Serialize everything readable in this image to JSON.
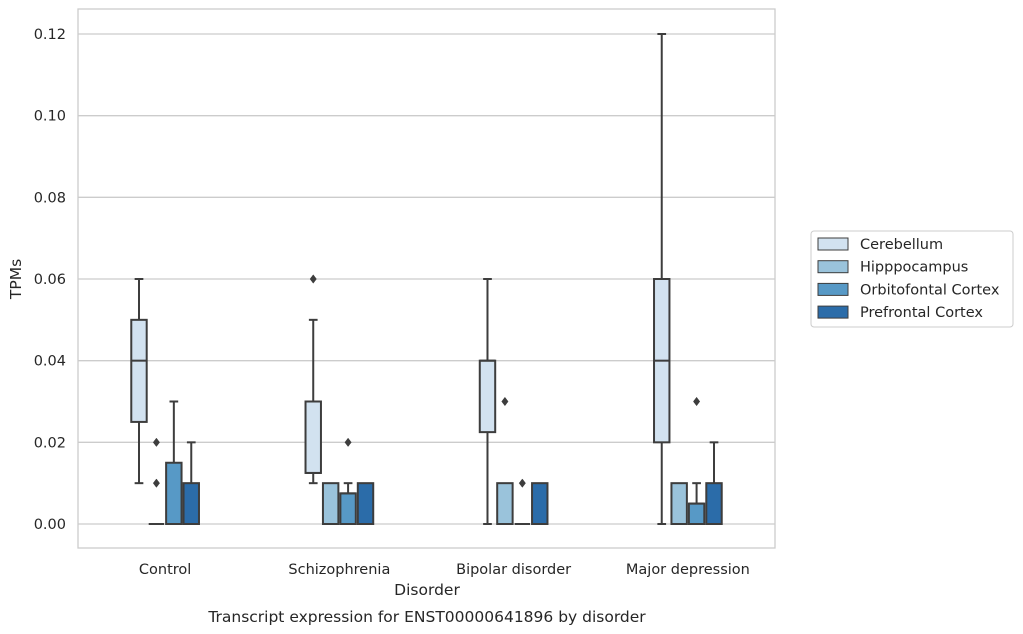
{
  "chart_data": {
    "type": "box",
    "title": "Transcript expression for ENST00000641896 by disorder",
    "xlabel": "Disorder",
    "ylabel": "TPMs",
    "ylim": [
      -0.006,
      0.126
    ],
    "yticks": [
      0.0,
      0.02,
      0.04,
      0.06,
      0.08,
      0.1,
      0.12
    ],
    "ytick_labels": [
      "0.00",
      "0.02",
      "0.04",
      "0.06",
      "0.08",
      "0.10",
      "0.12"
    ],
    "categories": [
      "Control",
      "Schizophrenia",
      "Bipolar disorder",
      "Major depression"
    ],
    "grid": "horizontal",
    "legend_position": "right",
    "series": [
      {
        "name": "Cerebellum",
        "color": "#d2e2f0",
        "boxes": [
          {
            "q1": 0.025,
            "median": 0.04,
            "q3": 0.05,
            "whisker_low": 0.01,
            "whisker_high": 0.06,
            "outliers": []
          },
          {
            "q1": 0.0125,
            "median": 0.0125,
            "q3": 0.03,
            "whisker_low": 0.01,
            "whisker_high": 0.05,
            "outliers": [
              0.06
            ]
          },
          {
            "q1": 0.0225,
            "median": 0.04,
            "q3": 0.04,
            "whisker_low": 0.0,
            "whisker_high": 0.06,
            "outliers": []
          },
          {
            "q1": 0.02,
            "median": 0.04,
            "q3": 0.06,
            "whisker_low": 0.0,
            "whisker_high": 0.12,
            "outliers": []
          }
        ]
      },
      {
        "name": "Hipppocampus",
        "color": "#9ac3db",
        "boxes": [
          {
            "q1": 0.0,
            "median": 0.0,
            "q3": 0.0,
            "whisker_low": 0.0,
            "whisker_high": 0.0,
            "outliers": [
              0.01,
              0.02
            ]
          },
          {
            "q1": 0.0,
            "median": 0.0,
            "q3": 0.01,
            "whisker_low": 0.0,
            "whisker_high": 0.01,
            "outliers": []
          },
          {
            "q1": 0.0,
            "median": 0.0,
            "q3": 0.01,
            "whisker_low": 0.0,
            "whisker_high": 0.01,
            "outliers": [
              0.03
            ]
          },
          {
            "q1": 0.0,
            "median": 0.0,
            "q3": 0.01,
            "whisker_low": 0.0,
            "whisker_high": 0.01,
            "outliers": []
          }
        ]
      },
      {
        "name": "Orbitofontal Cortex",
        "color": "#5799c6",
        "boxes": [
          {
            "q1": 0.0,
            "median": 0.0,
            "q3": 0.015,
            "whisker_low": 0.0,
            "whisker_high": 0.03,
            "outliers": []
          },
          {
            "q1": 0.0,
            "median": 0.0075,
            "q3": 0.0075,
            "whisker_low": 0.0,
            "whisker_high": 0.01,
            "outliers": [
              0.02
            ]
          },
          {
            "q1": 0.0,
            "median": 0.0,
            "q3": 0.0,
            "whisker_low": 0.0,
            "whisker_high": 0.0,
            "outliers": [
              0.01
            ]
          },
          {
            "q1": 0.0,
            "median": 0.005,
            "q3": 0.005,
            "whisker_low": 0.0,
            "whisker_high": 0.01,
            "outliers": [
              0.03
            ]
          }
        ]
      },
      {
        "name": "Prefrontal Cortex",
        "color": "#2b6ca9",
        "boxes": [
          {
            "q1": 0.0,
            "median": 0.0,
            "q3": 0.01,
            "whisker_low": 0.0,
            "whisker_high": 0.02,
            "outliers": []
          },
          {
            "q1": 0.0,
            "median": 0.0,
            "q3": 0.01,
            "whisker_low": 0.0,
            "whisker_high": 0.01,
            "outliers": []
          },
          {
            "q1": 0.0,
            "median": 0.0,
            "q3": 0.01,
            "whisker_low": 0.0,
            "whisker_high": 0.01,
            "outliers": []
          },
          {
            "q1": 0.0,
            "median": 0.0,
            "q3": 0.01,
            "whisker_low": 0.0,
            "whisker_high": 0.02,
            "outliers": []
          }
        ]
      }
    ]
  }
}
